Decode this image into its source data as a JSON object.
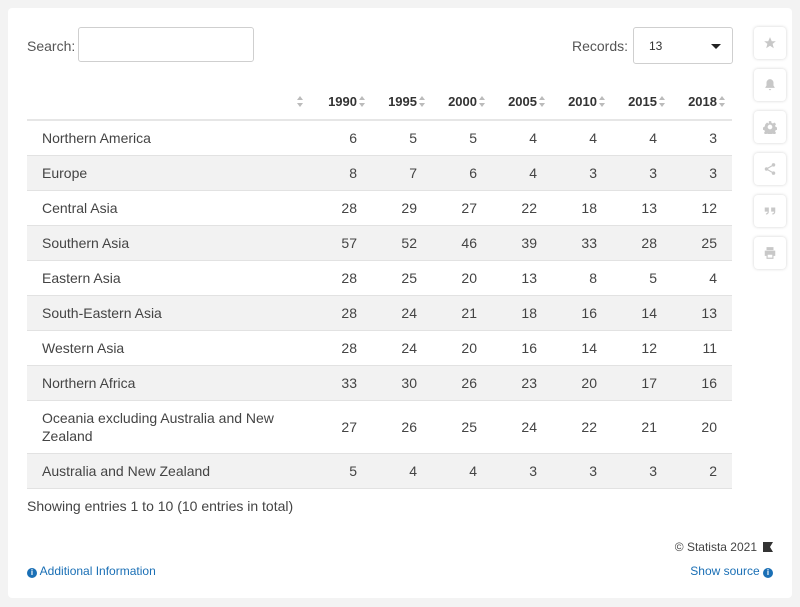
{
  "search": {
    "label": "Search:",
    "value": "",
    "placeholder": ""
  },
  "records": {
    "label": "Records:",
    "value": "13"
  },
  "table": {
    "label_header": "",
    "columns": [
      "1990",
      "1995",
      "2000",
      "2005",
      "2010",
      "2015",
      "2018"
    ],
    "rows": [
      {
        "label": "Northern America",
        "values": [
          "6",
          "5",
          "5",
          "4",
          "4",
          "4",
          "3"
        ]
      },
      {
        "label": "Europe",
        "values": [
          "8",
          "7",
          "6",
          "4",
          "3",
          "3",
          "3"
        ]
      },
      {
        "label": "Central Asia",
        "values": [
          "28",
          "29",
          "27",
          "22",
          "18",
          "13",
          "12"
        ]
      },
      {
        "label": "Southern Asia",
        "values": [
          "57",
          "52",
          "46",
          "39",
          "33",
          "28",
          "25"
        ]
      },
      {
        "label": "Eastern Asia",
        "values": [
          "28",
          "25",
          "20",
          "13",
          "8",
          "5",
          "4"
        ]
      },
      {
        "label": "South-Eastern Asia",
        "values": [
          "28",
          "24",
          "21",
          "18",
          "16",
          "14",
          "13"
        ]
      },
      {
        "label": "Western Asia",
        "values": [
          "28",
          "24",
          "20",
          "16",
          "14",
          "12",
          "11"
        ]
      },
      {
        "label": "Northern Africa",
        "values": [
          "33",
          "30",
          "26",
          "23",
          "20",
          "17",
          "16"
        ]
      },
      {
        "label": "Oceania excluding Australia and New Zealand",
        "values": [
          "27",
          "26",
          "25",
          "24",
          "22",
          "21",
          "20"
        ]
      },
      {
        "label": "Australia and New Zealand",
        "values": [
          "5",
          "4",
          "4",
          "3",
          "3",
          "3",
          "2"
        ]
      }
    ]
  },
  "footer": {
    "entries": "Showing entries 1 to 10 (10 entries in total)",
    "copyright": "© Statista 2021",
    "additional_info": "Additional Information",
    "show_source": "Show source"
  },
  "sidebar_icons": [
    "star-icon",
    "bell-icon",
    "gear-icon",
    "share-icon",
    "quote-icon",
    "print-icon"
  ],
  "colors": {
    "link": "#1a6fb5",
    "stripe": "#f2f2f2",
    "background": "#f3f3f3"
  }
}
